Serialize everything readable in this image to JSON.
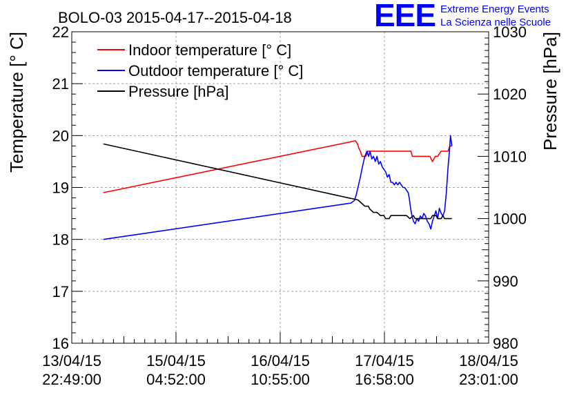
{
  "chart_data": {
    "type": "line",
    "title": "BOLO-03 2015-04-17--2015-04-18",
    "logo": {
      "mark": "EEE",
      "line1": "Extreme Energy Events",
      "line2": "La Scienza nelle Scuole",
      "color": "#0000ff"
    },
    "x_ticks": [
      {
        "date": "13/04/15",
        "time": "22:49:00",
        "t": 0
      },
      {
        "date": "15/04/15",
        "time": "04:52:00",
        "t": 30.05
      },
      {
        "date": "16/04/15",
        "time": "10:55:00",
        "t": 60.1
      },
      {
        "date": "17/04/15",
        "time": "16:58:00",
        "t": 90.15
      },
      {
        "date": "18/04/15",
        "time": "23:01:00",
        "t": 120.2
      }
    ],
    "xlim": [
      0,
      120.2
    ],
    "ylabel_left": "Temperature [° C]",
    "ylabel_right": "Pressure [hPa]",
    "ylim_left": [
      16,
      22
    ],
    "yticks_left": [
      16,
      17,
      18,
      19,
      20,
      21,
      22
    ],
    "ylim_right": [
      980,
      1030
    ],
    "yticks_right": [
      980,
      990,
      1000,
      1010,
      1020,
      1030
    ],
    "grid": true,
    "legend_position": "top-left",
    "series": [
      {
        "name": "Indoor temperature [° C]",
        "axis": "left",
        "color": "#ff0000",
        "points": [
          [
            9.1,
            18.9
          ],
          [
            81.8,
            19.9
          ],
          [
            82.3,
            19.85
          ],
          [
            82.8,
            19.75
          ],
          [
            83.2,
            19.7
          ],
          [
            83.7,
            19.6
          ],
          [
            84.2,
            19.6
          ],
          [
            84.8,
            19.6
          ],
          [
            85.1,
            19.65
          ],
          [
            85.4,
            19.7
          ],
          [
            86.0,
            19.7
          ],
          [
            92.0,
            19.7
          ],
          [
            97.8,
            19.7
          ],
          [
            98.2,
            19.6
          ],
          [
            103.0,
            19.6
          ],
          [
            103.3,
            19.6
          ],
          [
            103.6,
            19.55
          ],
          [
            104.0,
            19.5
          ],
          [
            104.4,
            19.55
          ],
          [
            104.8,
            19.6
          ],
          [
            105.5,
            19.6
          ],
          [
            106.0,
            19.65
          ],
          [
            106.5,
            19.7
          ],
          [
            107.5,
            19.7
          ],
          [
            108.5,
            19.7
          ],
          [
            109.0,
            19.8
          ],
          [
            109.6,
            19.8
          ]
        ]
      },
      {
        "name": "Outdoor temperature [° C]",
        "axis": "left",
        "color": "#0000ff",
        "points": [
          [
            9.1,
            18.0
          ],
          [
            80.5,
            18.7
          ],
          [
            81.5,
            18.75
          ],
          [
            82.0,
            18.85
          ],
          [
            82.5,
            19.0
          ],
          [
            83.2,
            19.2
          ],
          [
            83.8,
            19.4
          ],
          [
            84.5,
            19.6
          ],
          [
            85.1,
            19.7
          ],
          [
            85.6,
            19.6
          ],
          [
            86.0,
            19.7
          ],
          [
            86.5,
            19.55
          ],
          [
            87.0,
            19.6
          ],
          [
            87.5,
            19.5
          ],
          [
            88.0,
            19.6
          ],
          [
            88.5,
            19.45
          ],
          [
            89.0,
            19.5
          ],
          [
            89.5,
            19.4
          ],
          [
            90.0,
            19.35
          ],
          [
            90.5,
            19.3
          ],
          [
            91.0,
            19.2
          ],
          [
            91.5,
            19.25
          ],
          [
            92.0,
            19.1
          ],
          [
            92.5,
            19.1
          ],
          [
            93.0,
            19.05
          ],
          [
            93.5,
            19.1
          ],
          [
            94.0,
            19.05
          ],
          [
            94.5,
            19.1
          ],
          [
            95.0,
            19.05
          ],
          [
            95.5,
            19.0
          ],
          [
            96.0,
            19.0
          ],
          [
            96.5,
            18.95
          ],
          [
            97.0,
            18.9
          ],
          [
            97.3,
            18.8
          ],
          [
            97.7,
            18.6
          ],
          [
            98.1,
            18.45
          ],
          [
            98.5,
            18.35
          ],
          [
            99.0,
            18.3
          ],
          [
            99.5,
            18.4
          ],
          [
            100.0,
            18.35
          ],
          [
            100.5,
            18.45
          ],
          [
            101.0,
            18.4
          ],
          [
            101.5,
            18.5
          ],
          [
            102.0,
            18.45
          ],
          [
            102.5,
            18.35
          ],
          [
            103.0,
            18.3
          ],
          [
            103.5,
            18.2
          ],
          [
            104.0,
            18.35
          ],
          [
            104.5,
            18.45
          ],
          [
            105.0,
            18.55
          ],
          [
            105.5,
            18.4
          ],
          [
            106.0,
            18.6
          ],
          [
            106.5,
            18.5
          ],
          [
            107.0,
            18.45
          ],
          [
            107.5,
            18.55
          ],
          [
            108.0,
            18.9
          ],
          [
            108.5,
            19.4
          ],
          [
            108.9,
            19.7
          ],
          [
            109.2,
            20.0
          ],
          [
            109.6,
            19.8
          ]
        ]
      },
      {
        "name": "Pressure [hPa]",
        "axis": "right",
        "color": "#000000",
        "points": [
          [
            9.1,
            1012.0
          ],
          [
            80.0,
            1003.3
          ],
          [
            82.5,
            1003.0
          ],
          [
            83.5,
            1002.5
          ],
          [
            84.5,
            1002.0
          ],
          [
            85.5,
            1002.0
          ],
          [
            86.0,
            1001.5
          ],
          [
            87.0,
            1001.0
          ],
          [
            88.0,
            1001.0
          ],
          [
            89.0,
            1000.5
          ],
          [
            90.0,
            1000.5
          ],
          [
            90.5,
            1000.0
          ],
          [
            91.5,
            1000.0
          ],
          [
            92.0,
            1000.5
          ],
          [
            96.5,
            1000.5
          ],
          [
            97.5,
            1000.0
          ],
          [
            98.5,
            1000.5
          ],
          [
            99.0,
            1000.0
          ],
          [
            103.5,
            1000.0
          ],
          [
            104.0,
            1000.5
          ],
          [
            105.0,
            1000.5
          ],
          [
            105.5,
            1000.0
          ],
          [
            106.5,
            1000.0
          ],
          [
            107.0,
            1000.5
          ],
          [
            107.5,
            1000.0
          ],
          [
            109.6,
            1000.0
          ]
        ]
      }
    ]
  }
}
